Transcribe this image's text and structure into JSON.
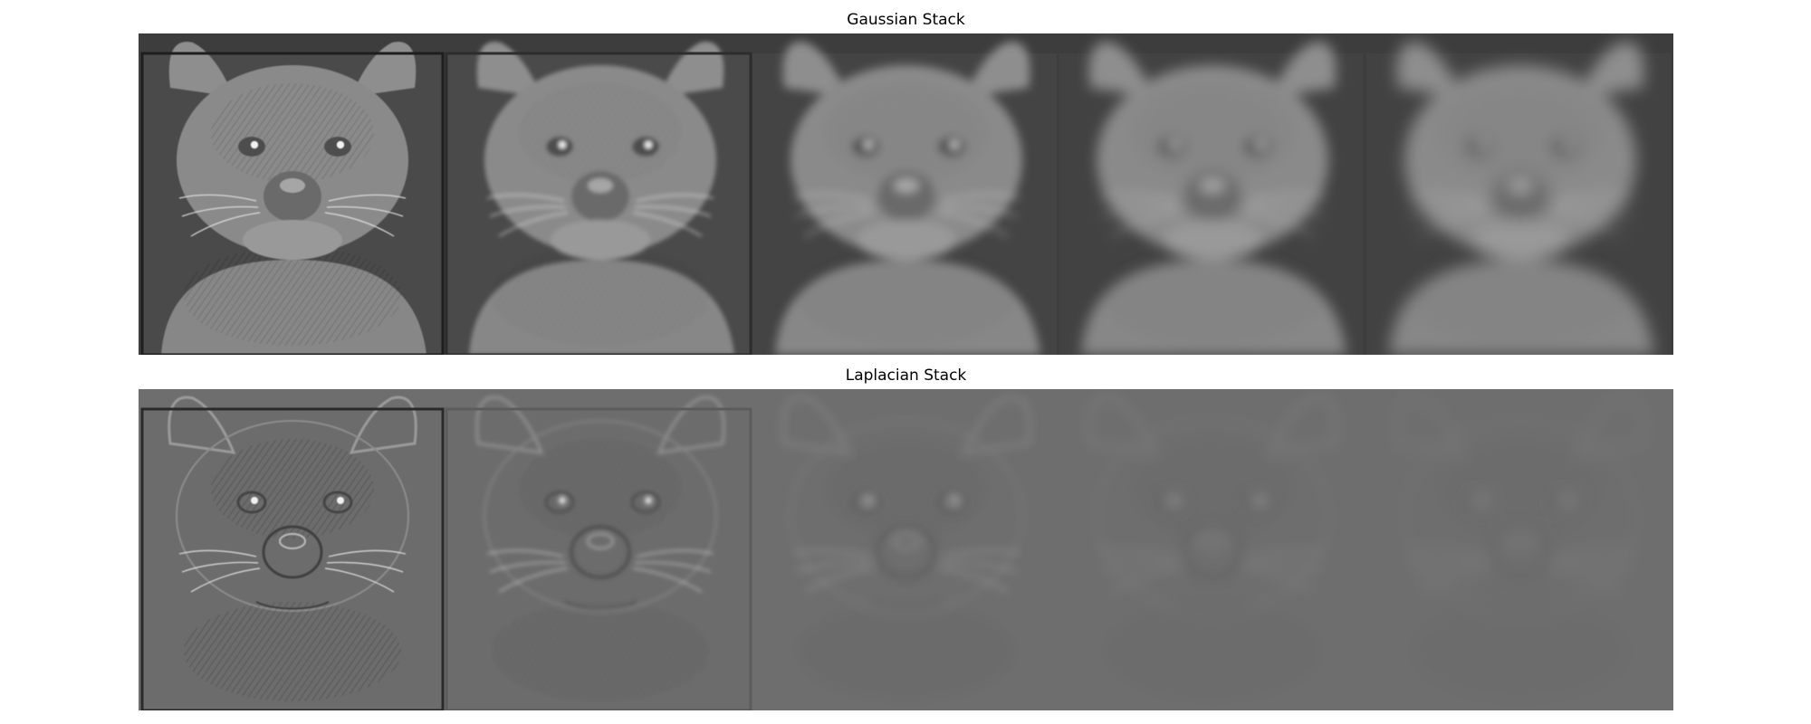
{
  "figure": {
    "gaussian": {
      "title": "Gaussian Stack",
      "levels": 5,
      "background": "#3d3d3d"
    },
    "laplacian": {
      "title": "Laplacian Stack",
      "levels": 5,
      "background": "#6e6e6e"
    }
  }
}
